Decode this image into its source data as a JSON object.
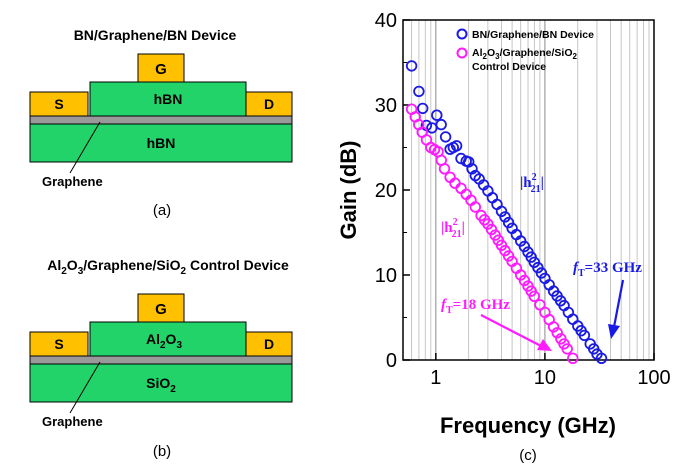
{
  "panel_a": {
    "title": "BN/Graphene/BN Device",
    "gate": "G",
    "source": "S",
    "drain": "D",
    "top_dielectric": "hBN",
    "substrate": "hBN",
    "graphene_label": "Graphene",
    "caption": "(a)"
  },
  "panel_b": {
    "title_parts": [
      "Al",
      "2",
      "O",
      "3",
      "/Graphene/SiO",
      "2",
      " Control Device"
    ],
    "gate": "G",
    "source": "S",
    "drain": "D",
    "dielectric_parts": [
      "Al",
      "2",
      "O",
      "3"
    ],
    "substrate_parts": [
      "SiO",
      "2"
    ],
    "graphene_label": "Graphene",
    "caption": "(b)"
  },
  "panel_c": {
    "caption": "(c)"
  },
  "colors": {
    "gold": "#FFC000",
    "green": "#22D36A",
    "graphene_gray": "#999999",
    "series_bn": "#1A1AE6",
    "series_control": "#FF1AFF"
  },
  "chart_data": {
    "type": "scatter",
    "xlabel": "Frequency (GHz)",
    "ylabel": "Gain (dB)",
    "xscale": "log",
    "xlim": [
      0.5,
      100
    ],
    "ylim": [
      0,
      40
    ],
    "xticks": [
      "1",
      "10",
      "100"
    ],
    "yticks": [
      "0",
      "10",
      "20",
      "30",
      "40"
    ],
    "grid": "vertical log grid",
    "legend_placement": "top-right",
    "series": [
      {
        "name": "BN/Graphene/BN Device",
        "marker": "open circle",
        "color": "#1A1AE6",
        "points": [
          [
            0.7,
            31.6
          ],
          [
            0.82,
            27.6
          ],
          [
            0.92,
            27.3
          ],
          [
            1.02,
            28.8
          ],
          [
            1.12,
            27.7
          ],
          [
            1.35,
            24.8
          ],
          [
            1.55,
            25.2
          ],
          [
            1.7,
            23.7
          ],
          [
            1.9,
            23.4
          ],
          [
            2.0,
            23.3
          ],
          [
            2.3,
            21.7
          ],
          [
            2.5,
            21.3
          ],
          [
            3,
            19.9
          ],
          [
            4,
            17.5
          ],
          [
            5,
            15.5
          ],
          [
            6,
            14.0
          ],
          [
            7,
            12.7
          ],
          [
            8,
            11.5
          ],
          [
            10,
            9.6
          ],
          [
            12,
            8.1
          ],
          [
            15,
            6.4
          ],
          [
            18,
            4.8
          ],
          [
            20,
            4.0
          ],
          [
            23,
            2.9
          ],
          [
            26,
            1.9
          ],
          [
            28,
            1.3
          ],
          [
            30,
            0.7
          ],
          [
            33,
            0.2
          ]
        ]
      },
      {
        "name_parts": [
          "Al",
          "2",
          "O",
          "3",
          "/Graphene/SiO",
          "2"
        ],
        "name_line2": "Control Device",
        "marker": "open circle",
        "color": "#FF1AFF",
        "points": [
          [
            0.6,
            29.5
          ],
          [
            0.75,
            26.8
          ],
          [
            0.9,
            25.0
          ],
          [
            1.05,
            24.5
          ],
          [
            1.2,
            22.5
          ],
          [
            1.35,
            21.5
          ],
          [
            1.5,
            20.8
          ],
          [
            1.7,
            20.2
          ],
          [
            1.9,
            19.5
          ],
          [
            2.1,
            18.8
          ],
          [
            2.3,
            18.0
          ],
          [
            2.6,
            17.0
          ],
          [
            3,
            16.0
          ],
          [
            3.5,
            14.7
          ],
          [
            4,
            13.5
          ],
          [
            5,
            11.6
          ],
          [
            6,
            10.0
          ],
          [
            7,
            8.7
          ],
          [
            8,
            7.5
          ],
          [
            9,
            6.5
          ],
          [
            10,
            5.6
          ],
          [
            12,
            3.9
          ],
          [
            14,
            2.5
          ],
          [
            16,
            1.3
          ],
          [
            18,
            0.2
          ]
        ]
      }
    ],
    "annotations": [
      {
        "italic": "f",
        "sub": "T",
        "text": "=33 GHz",
        "color": "#1A1AE6"
      },
      {
        "italic": "f",
        "sub": "T",
        "text": "=18 GHz",
        "color": "#FF1AFF"
      },
      {
        "base": "|h",
        "sup": "2",
        "sub": "21",
        "close": "|",
        "color": "#1A1AE6"
      },
      {
        "base": "|h",
        "sup": "2",
        "sub": "21",
        "close": "|",
        "color": "#FF1AFF"
      }
    ]
  }
}
